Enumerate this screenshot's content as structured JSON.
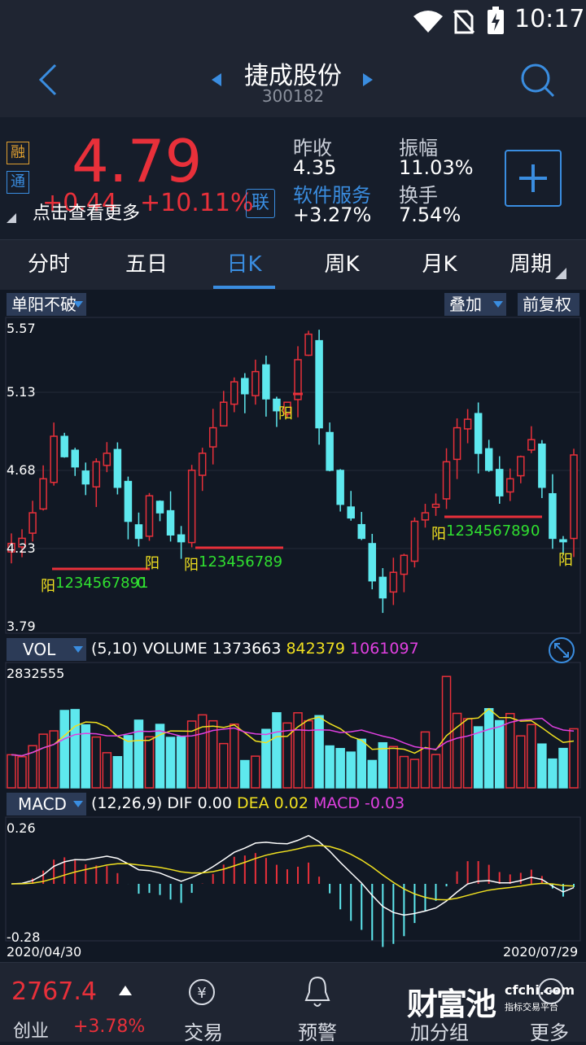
{
  "status": {
    "time": "10:17"
  },
  "header": {
    "stock_name": "捷成股份",
    "stock_code": "300182"
  },
  "quote": {
    "price": "4.79",
    "change": "+0.44",
    "change_pct": "+10.11%",
    "badge_rong": "融",
    "badge_tong": "通",
    "badge_lian": "联",
    "hint": "点击查看更多",
    "prev_close_label": "昨收",
    "prev_close": "4.35",
    "amplitude_label": "振幅",
    "amplitude": "11.03%",
    "sector_label": "软件服务",
    "sector_change": "+3.27%",
    "turnover_label": "换手",
    "turnover": "7.54%"
  },
  "tabs": [
    "分时",
    "五日",
    "日K",
    "周K",
    "月K",
    "周期"
  ],
  "active_tab": 2,
  "kline": {
    "indicator": "单阳不破",
    "overlay": "叠加",
    "adjust": "前复权",
    "ticks": [
      "5.57",
      "5.13",
      "4.68",
      "4.23",
      "3.79"
    ],
    "marker": "阳",
    "count1": "1234567891",
    "count1_end": "0",
    "count2": "123456789",
    "count3": "123456789",
    "count3_end": "0"
  },
  "vol": {
    "selector": "VOL",
    "params": "(5,10)",
    "name": "VOLUME",
    "v": "1373663",
    "ma5": "842379",
    "ma10": "1061097",
    "max_tick": "2832555"
  },
  "macd": {
    "selector": "MACD",
    "params": "(12,26,9)",
    "dif_label": "DIF",
    "dif": "0.00",
    "dea_label": "DEA",
    "dea": "0.02",
    "macd_label": "MACD",
    "macd": "-0.03",
    "top_tick": "0.26",
    "bottom_tick": "-0.28"
  },
  "dates": {
    "start": "2020/04/30",
    "end": "2020/07/29"
  },
  "bottom": {
    "index_value": "2767.4",
    "index_name": "创业",
    "index_change": "+3.78%",
    "nav": [
      "交易",
      "预警",
      "加分组",
      "更多"
    ],
    "brand": "财富池",
    "brand_site": "cfchi.com",
    "brand_sub": "指标交易平台"
  },
  "colors": {
    "up": "#e8303a",
    "down": "#5ee8ee",
    "yellow": "#f0e020",
    "magenta": "#e040e0",
    "green": "#30e030",
    "accent": "#3a8de0"
  }
}
